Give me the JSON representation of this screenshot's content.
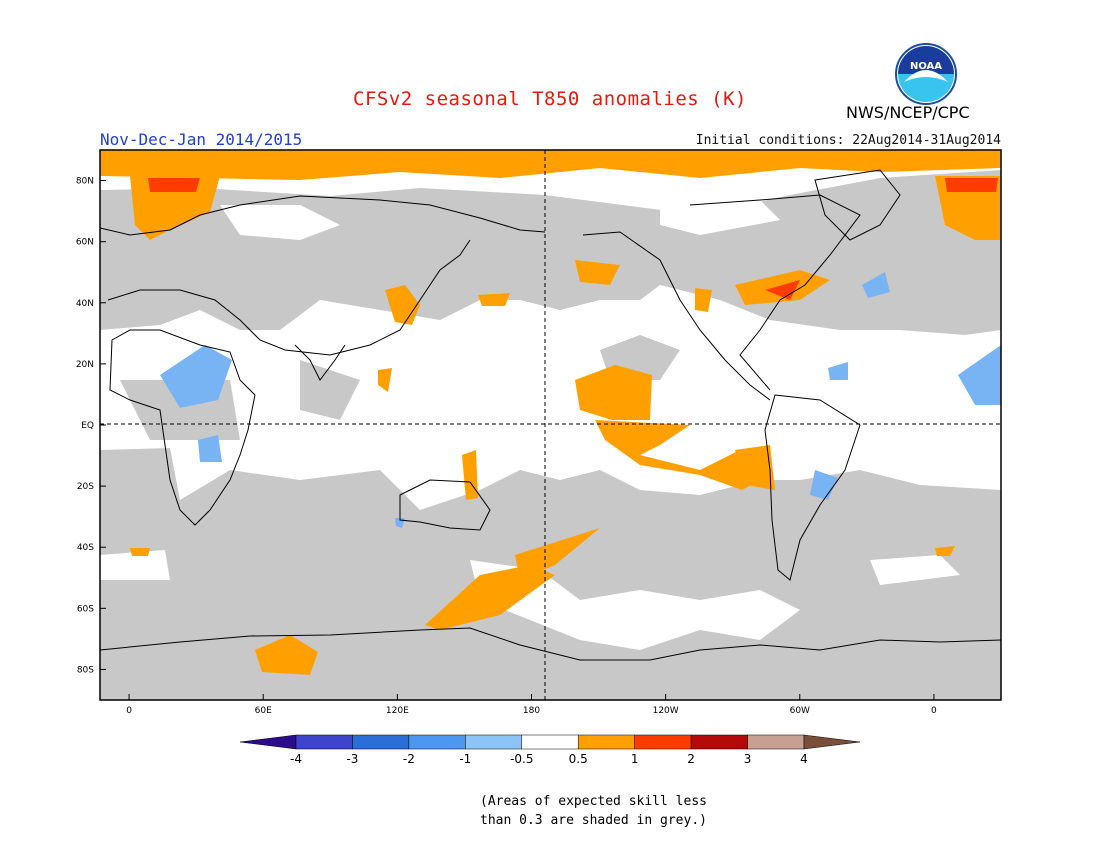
{
  "title": "CFSv2 seasonal T850 anomalies (K)",
  "agency": "NWS/NCEP/CPC",
  "logo_text": "NOAA",
  "period": "Nov-Dec-Jan 2014/2015",
  "initial_conditions": "Initial conditions: 22Aug2014-31Aug2014",
  "footnote": "(Areas of expected skill less\nthan 0.3 are shaded in grey.)",
  "colors": {
    "title": "#e8180e",
    "period": "#2140d8",
    "skill_grey": "#c8c8c8",
    "land_line": "#000000"
  },
  "lat_labels": [
    {
      "lat": 80,
      "text": "80N"
    },
    {
      "lat": 60,
      "text": "60N"
    },
    {
      "lat": 40,
      "text": "40N"
    },
    {
      "lat": 20,
      "text": "20N"
    },
    {
      "lat": 0,
      "text": "EQ"
    },
    {
      "lat": -20,
      "text": "20S"
    },
    {
      "lat": -40,
      "text": "40S"
    },
    {
      "lat": -60,
      "text": "60S"
    },
    {
      "lat": -80,
      "text": "80S"
    }
  ],
  "lon_labels": [
    {
      "lon": 0,
      "text": "0"
    },
    {
      "lon": 60,
      "text": "60E"
    },
    {
      "lon": 120,
      "text": "120E"
    },
    {
      "lon": 180,
      "text": "180"
    },
    {
      "lon": 240,
      "text": "120W"
    },
    {
      "lon": 300,
      "text": "60W"
    },
    {
      "lon": 360,
      "text": "0"
    }
  ],
  "colorbar": {
    "colors": [
      "#2a0c8c",
      "#3e44cc",
      "#2a6ed8",
      "#4a98f0",
      "#8cc4f8",
      "#ffffff",
      "#ffa000",
      "#ff3c00",
      "#b40a0a",
      "#c8a090",
      "#7a4e3a"
    ],
    "labels": [
      "-4",
      "-3",
      "-2",
      "-1",
      "-0.5",
      "0.5",
      "1",
      "2",
      "3",
      "4"
    ]
  }
}
